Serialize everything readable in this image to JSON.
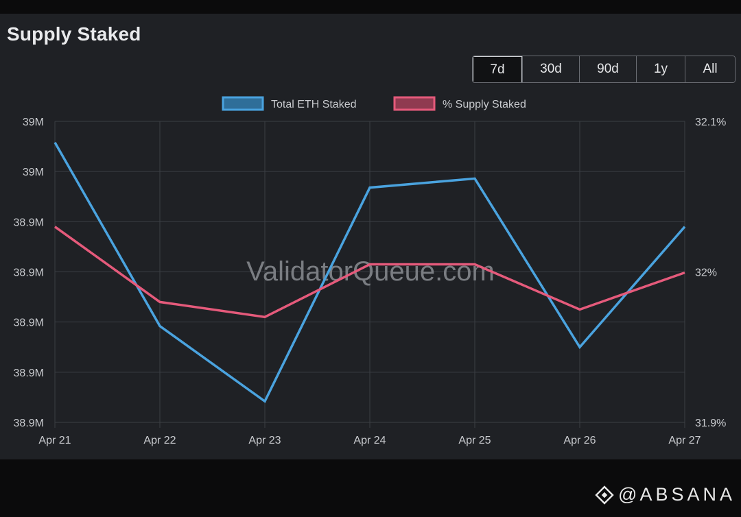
{
  "title": "Supply Staked",
  "range_buttons": [
    "7d",
    "30d",
    "90d",
    "1y",
    "All"
  ],
  "active_range": "7d",
  "watermark": "ValidatorQueue.com",
  "brand": {
    "at": "@",
    "name": "ABSANA"
  },
  "colors": {
    "eth_line": "#4aa3df",
    "pct_line": "#e55a7b",
    "grid": "#3b3e44",
    "text": "#c9cbcf"
  },
  "chart_data": {
    "type": "line",
    "categories": [
      "Apr 21",
      "Apr 22",
      "Apr 23",
      "Apr 24",
      "Apr 25",
      "Apr 26",
      "Apr 27"
    ],
    "series": [
      {
        "name": "Total ETH Staked",
        "axis": "left",
        "values": [
          0.93,
          0.32,
          0.07,
          0.78,
          0.81,
          0.25,
          0.65
        ]
      },
      {
        "name": "% Supply Staked",
        "axis": "right",
        "values": [
          32.03,
          31.98,
          31.97,
          32.005,
          32.005,
          31.975,
          31.9995
        ]
      }
    ],
    "left_axis": {
      "ticks": [
        "38.9M",
        "38.9M",
        "38.9M",
        "38.9M",
        "38.9M",
        "39M",
        "39M"
      ],
      "ylim": [
        0,
        1
      ]
    },
    "right_axis": {
      "ticks": [
        "31.9%",
        "32%",
        "32.1%"
      ],
      "tick_values": [
        31.9,
        32.0,
        32.1
      ],
      "ylim": [
        31.9,
        32.1
      ]
    },
    "legend": "top-center",
    "grid": true
  }
}
